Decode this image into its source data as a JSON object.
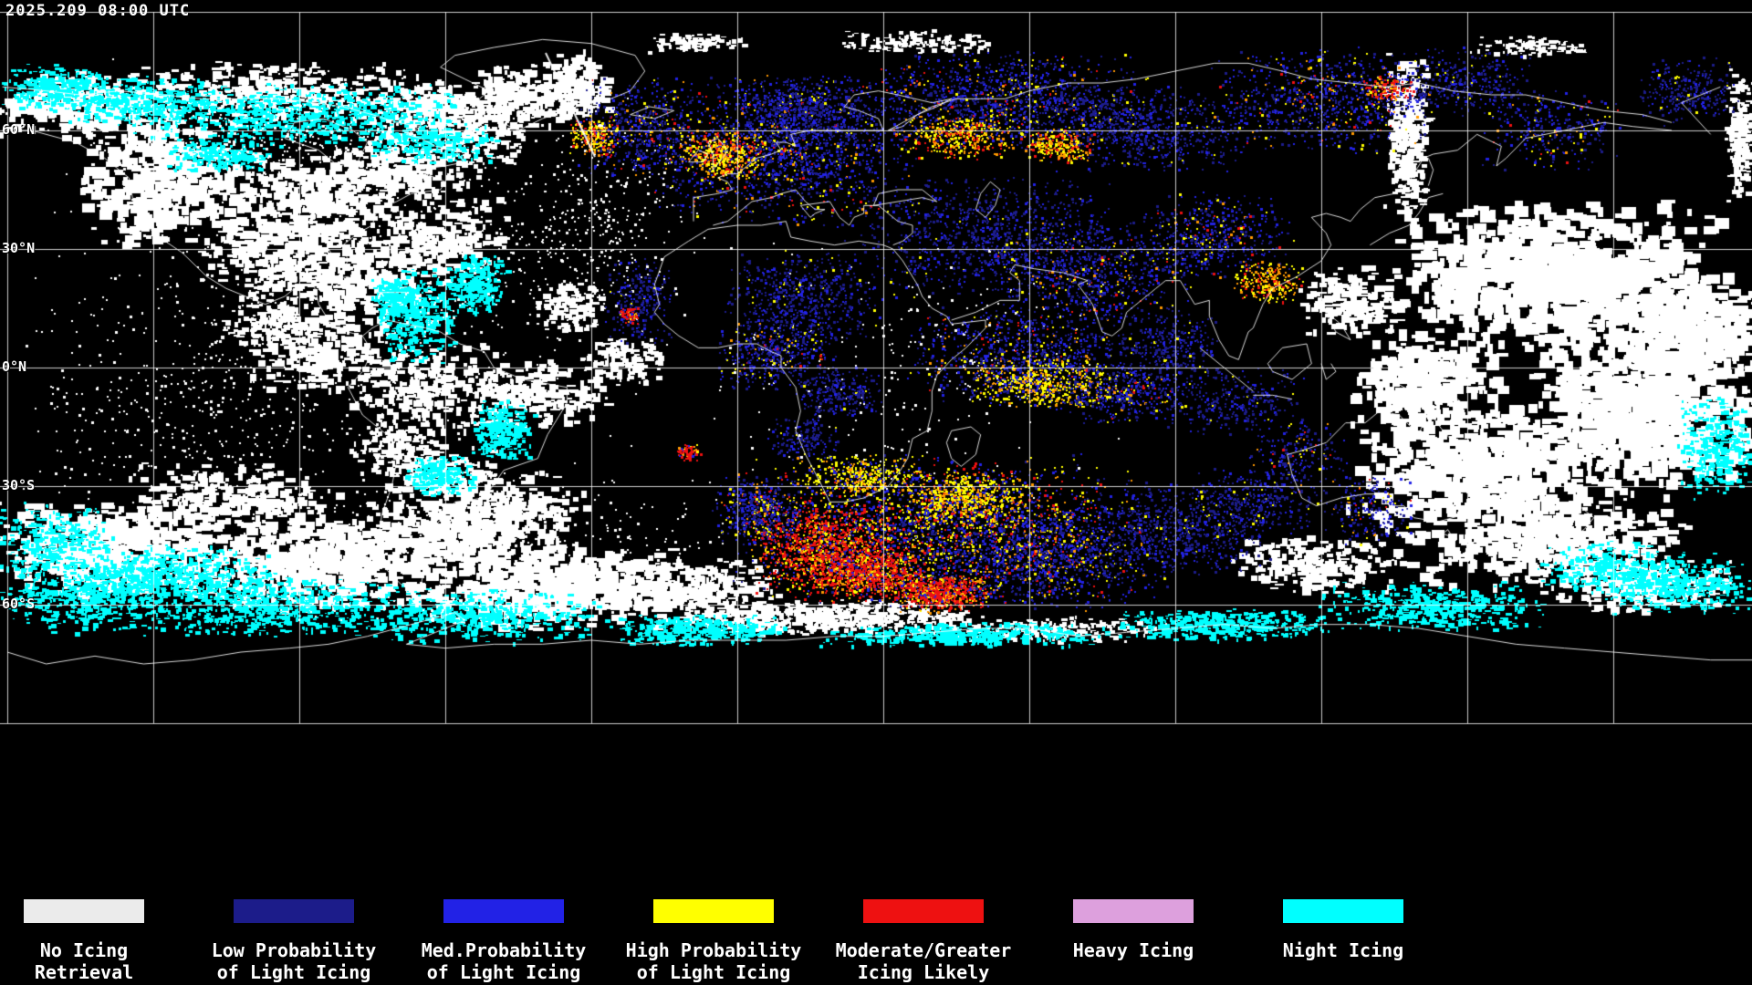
{
  "map": {
    "timestamp": "2025.209 08:00 UTC",
    "lat_labels": [
      {
        "text": "60°N"
      },
      {
        "text": "30°N"
      },
      {
        "text": "0°N"
      },
      {
        "text": "30°S"
      },
      {
        "text": "60°S"
      }
    ]
  },
  "legend": {
    "items": [
      {
        "color": "#ebebeb",
        "lines": [
          "No Icing",
          "Retrieval"
        ]
      },
      {
        "color": "#1c1c8a",
        "lines": [
          "Low Probability",
          "of Light Icing"
        ]
      },
      {
        "color": "#2222e6",
        "lines": [
          "Med.Probability",
          "of Light Icing"
        ]
      },
      {
        "color": "#ffff00",
        "lines": [
          "High Probability",
          "of Light Icing"
        ]
      },
      {
        "color": "#ee1111",
        "lines": [
          "Moderate/Greater",
          "Icing Likely"
        ]
      },
      {
        "color": "#dda0dd",
        "lines": [
          "Heavy Icing"
        ]
      },
      {
        "color": "#00ffff",
        "lines": [
          "Night Icing"
        ]
      }
    ]
  }
}
